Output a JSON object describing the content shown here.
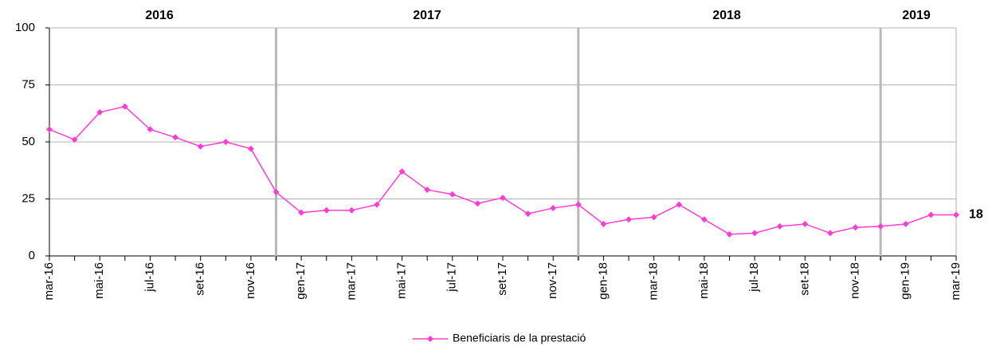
{
  "chart_data": {
    "type": "line",
    "categories": [
      "mar-16",
      null,
      "mai-16",
      null,
      "jul-16",
      null,
      "set-16",
      null,
      "nov-16",
      null,
      "gen-17",
      null,
      "mar-17",
      null,
      "mai-17",
      null,
      "jul-17",
      null,
      "set-17",
      null,
      "nov-17",
      null,
      "gen-18",
      null,
      "mar-18",
      null,
      "mai-18",
      null,
      "jul-18",
      null,
      "set-18",
      null,
      "nov-18",
      null,
      "gen-19",
      null,
      "mar-19"
    ],
    "series": [
      {
        "name": "Beneficiaris de la prestació",
        "color": "#ff3dd2",
        "values": [
          55.5,
          51,
          63,
          65.5,
          55.5,
          52,
          48,
          50,
          47,
          28,
          19,
          20,
          20,
          22.5,
          37,
          29,
          27,
          23,
          25.5,
          18.5,
          21,
          22.5,
          14,
          16,
          17,
          22.5,
          16,
          9.5,
          10,
          13,
          14,
          10,
          12.5,
          13,
          14,
          18,
          18
        ]
      }
    ],
    "annotations": [
      "2016",
      "2017",
      "2018",
      "2019"
    ],
    "ylim": [
      0,
      100
    ],
    "yticks": [
      0,
      25,
      50,
      75,
      100
    ],
    "grid": true,
    "legend": "bottom"
  }
}
